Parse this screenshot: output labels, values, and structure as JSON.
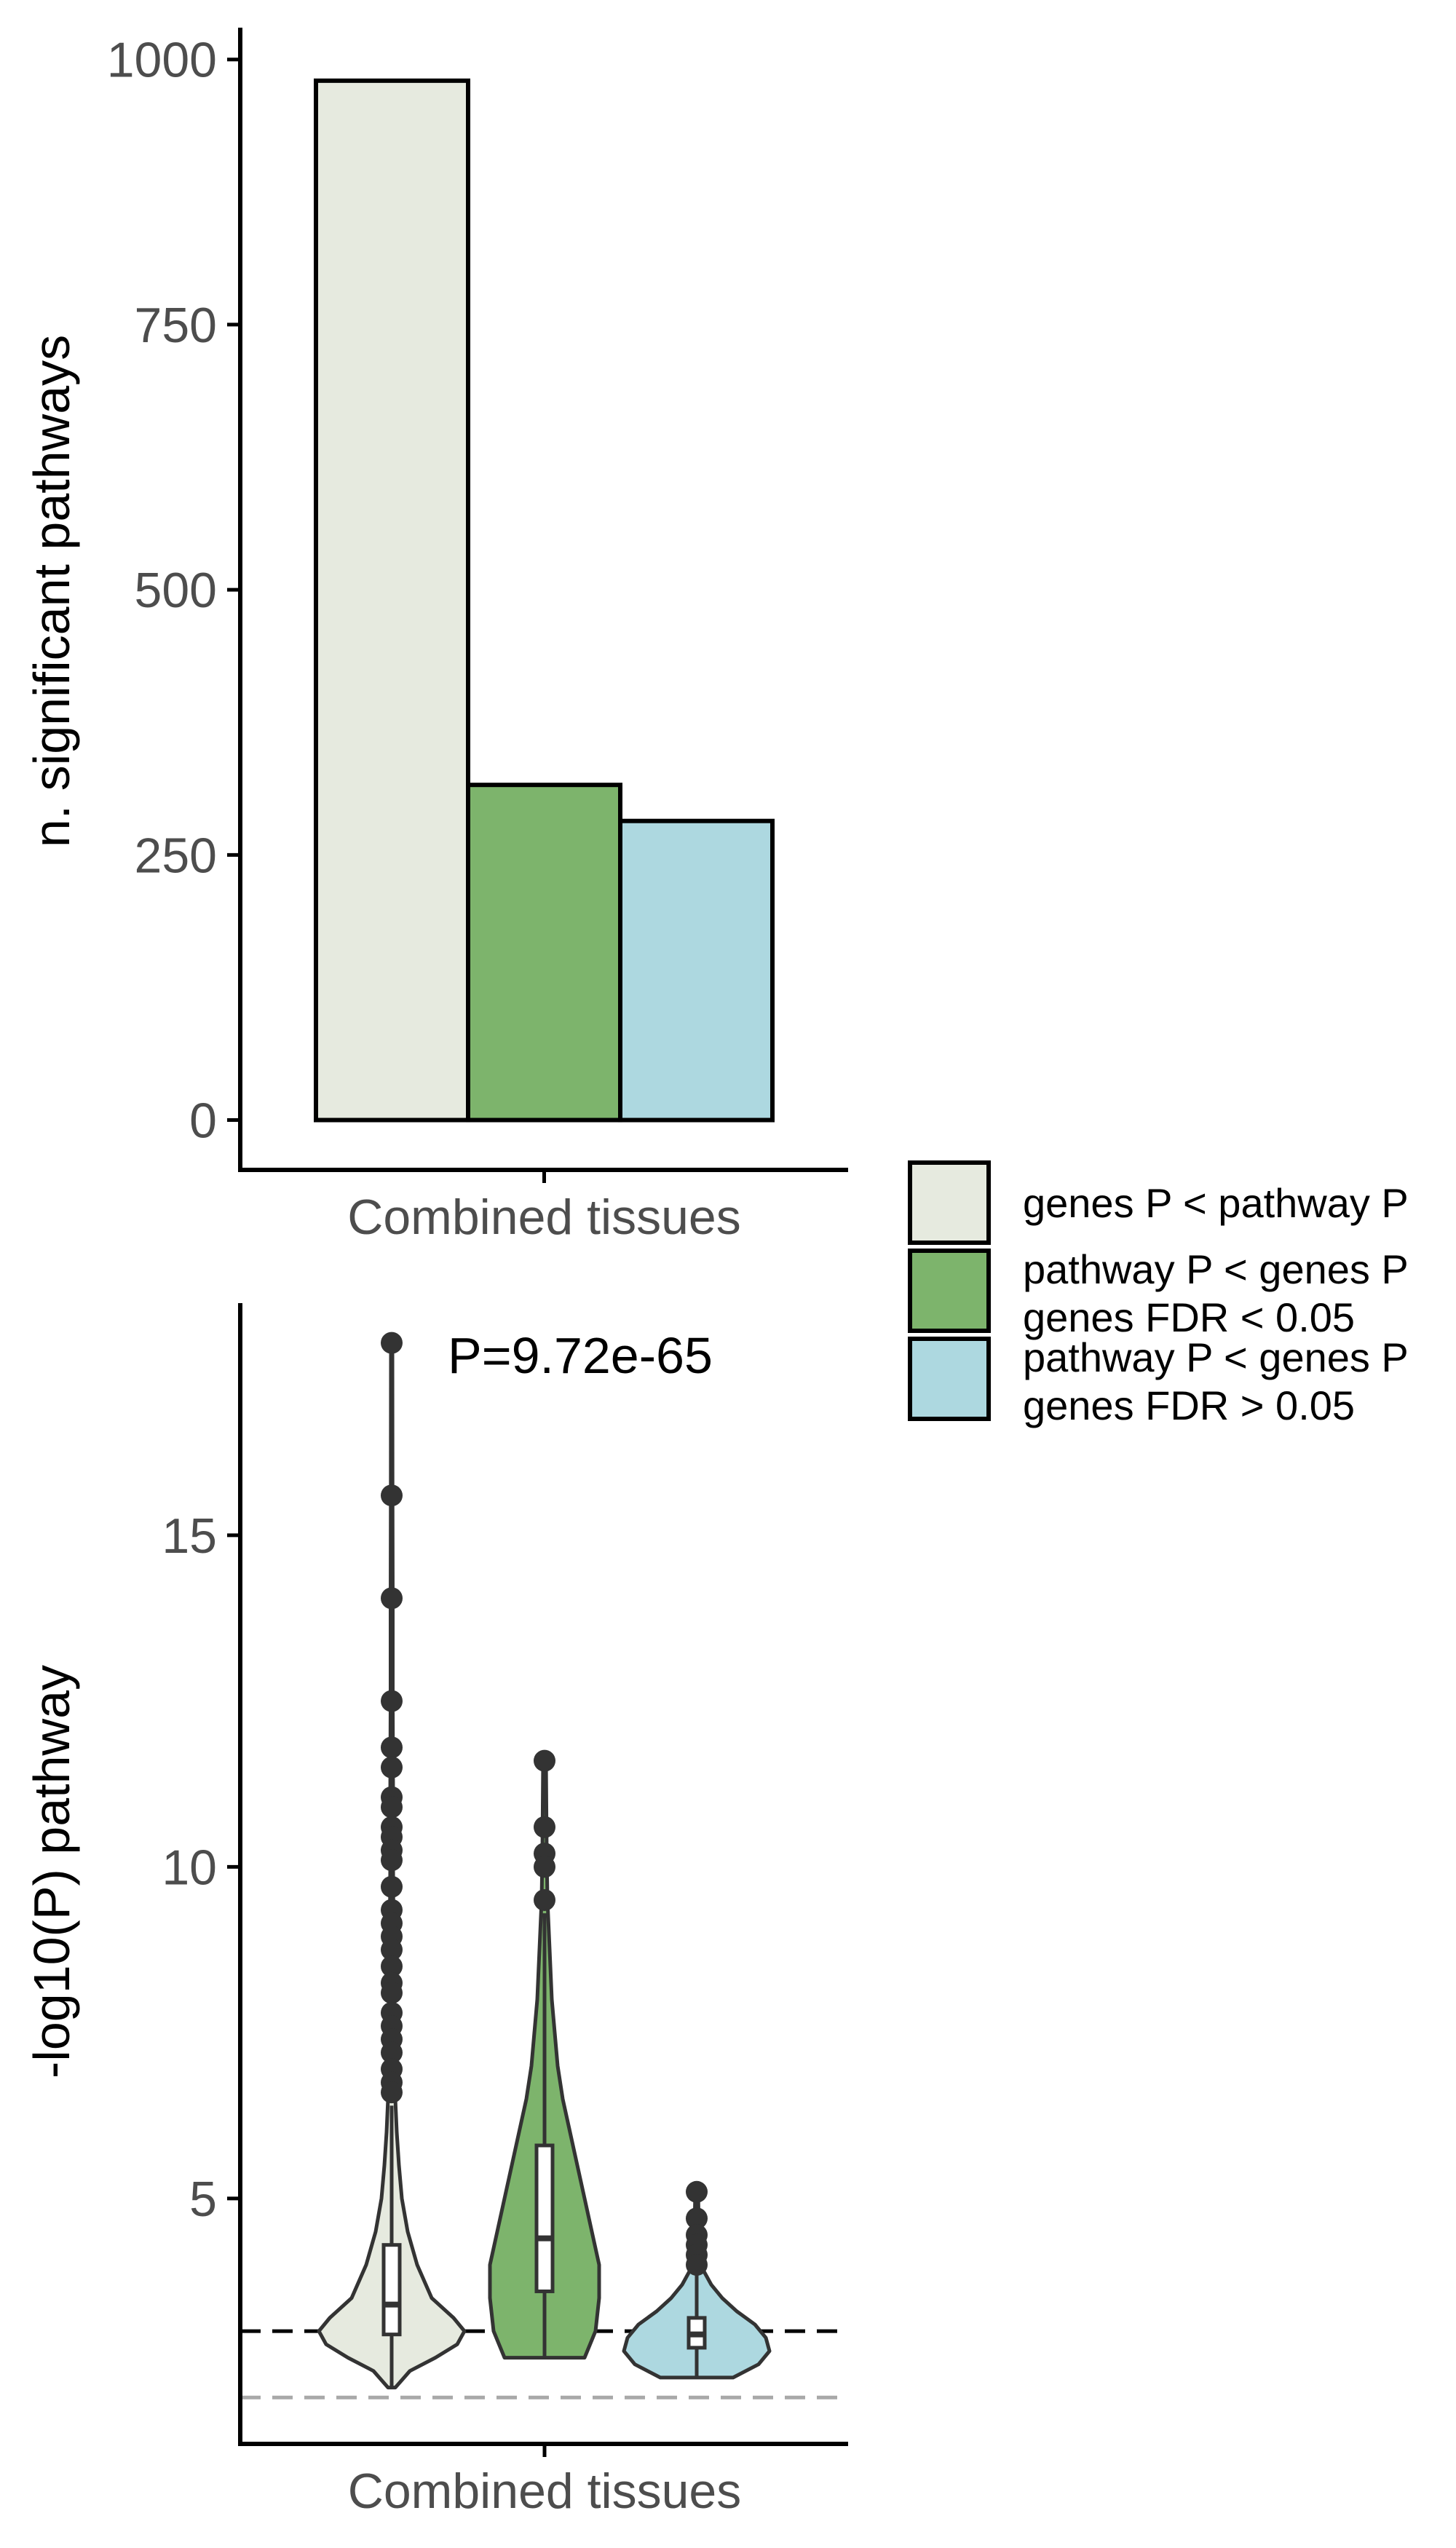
{
  "colors": {
    "genes_lt_pathway": "#E6EADF",
    "pathway_lt_genes_sig": "#7DB46C",
    "pathway_lt_genes_nonsig": "#ADD8E0",
    "outline": "#000000",
    "violin_line": "#333333",
    "threshold_dark": "#000000",
    "threshold_light": "#A9A9A9"
  },
  "legend": {
    "items": [
      {
        "key": "genes_lt_pathway",
        "lines": [
          "genes P < pathway P"
        ]
      },
      {
        "key": "pathway_lt_genes_sig",
        "lines": [
          "pathway P < genes P",
          "genes FDR < 0.05"
        ]
      },
      {
        "key": "pathway_lt_genes_nonsig",
        "lines": [
          "pathway P < genes P",
          "genes FDR > 0.05"
        ]
      }
    ],
    "placement": "right"
  },
  "chart_data": [
    {
      "type": "bar",
      "categories": [
        "Combined tissues"
      ],
      "series": [
        {
          "name": "genes P < pathway P",
          "values": [
            980
          ]
        },
        {
          "name": "pathway P < genes P genes FDR < 0.05",
          "values": [
            316
          ]
        },
        {
          "name": "pathway P < genes P genes FDR > 0.05",
          "values": [
            282
          ]
        }
      ],
      "xlabel": "",
      "ylabel": "n. significant pathways",
      "yticks": [
        0,
        250,
        500,
        750,
        1000
      ],
      "ytick_labels": [
        "0",
        "250",
        "500",
        "750",
        "1000"
      ],
      "ylim": [
        -47,
        1030
      ],
      "grid": false
    },
    {
      "type": "violin",
      "categories": [
        "Combined tissues"
      ],
      "xlabel": "",
      "ylabel": "-log10(P) pathway",
      "yticks": [
        5,
        10,
        15
      ],
      "ytick_labels": [
        "5",
        "10",
        "15"
      ],
      "ylim": [
        1.3,
        18.5
      ],
      "annotation": "P=9.72e-65",
      "hlines": [
        {
          "y": 3.0,
          "style": "dashed",
          "color": "#000000"
        },
        {
          "y": 2.0,
          "style": "dashed",
          "color": "#A9A9A9"
        }
      ],
      "grid": false,
      "series": [
        {
          "name": "genes P < pathway P",
          "min": 2.15,
          "q1": 2.95,
          "median": 3.4,
          "q3": 4.3,
          "whisker_high": 6.4,
          "density": [
            [
              2.15,
              0.05
            ],
            [
              2.4,
              0.25
            ],
            [
              2.6,
              0.6
            ],
            [
              2.8,
              0.9
            ],
            [
              3.0,
              1.0
            ],
            [
              3.2,
              0.85
            ],
            [
              3.5,
              0.55
            ],
            [
              4.0,
              0.35
            ],
            [
              4.5,
              0.22
            ],
            [
              5.0,
              0.14
            ],
            [
              5.5,
              0.1
            ],
            [
              6.0,
              0.07
            ],
            [
              6.5,
              0.05
            ],
            [
              7.0,
              0.04
            ],
            [
              8.0,
              0.03
            ],
            [
              9.0,
              0.025
            ],
            [
              10.0,
              0.02
            ],
            [
              11.0,
              0.02
            ],
            [
              12.5,
              0.015
            ],
            [
              14.0,
              0.015
            ],
            [
              15.6,
              0.012
            ],
            [
              17.9,
              0.01
            ]
          ],
          "outliers": [
            17.9,
            15.6,
            14.05,
            12.5,
            11.8,
            11.5,
            11.05,
            10.9,
            10.6,
            10.45,
            10.25,
            10.1,
            9.7,
            9.35,
            9.15,
            8.95,
            8.75,
            8.5,
            8.25,
            8.1,
            7.8,
            7.6,
            7.4,
            7.2,
            6.95,
            6.75,
            6.6
          ]
        },
        {
          "name": "pathway P < genes P genes FDR < 0.05",
          "min": 2.6,
          "q1": 3.6,
          "median": 4.4,
          "q3": 5.8,
          "whisker_high": 9.3,
          "density": [
            [
              2.6,
              0.55
            ],
            [
              3.0,
              0.7
            ],
            [
              3.5,
              0.75
            ],
            [
              4.0,
              0.75
            ],
            [
              4.5,
              0.65
            ],
            [
              5.0,
              0.55
            ],
            [
              5.5,
              0.45
            ],
            [
              6.0,
              0.35
            ],
            [
              6.5,
              0.25
            ],
            [
              7.0,
              0.18
            ],
            [
              8.0,
              0.1
            ],
            [
              9.0,
              0.06
            ],
            [
              9.5,
              0.04
            ],
            [
              10.2,
              0.03
            ],
            [
              11.6,
              0.02
            ]
          ],
          "outliers": [
            11.6,
            10.6,
            10.2,
            10.0,
            9.5
          ]
        },
        {
          "name": "pathway P < genes P genes FDR > 0.05",
          "min": 2.3,
          "q1": 2.75,
          "median": 2.95,
          "q3": 3.2,
          "whisker_high": 3.85,
          "density": [
            [
              2.3,
              0.5
            ],
            [
              2.5,
              0.85
            ],
            [
              2.7,
              1.0
            ],
            [
              2.9,
              0.95
            ],
            [
              3.1,
              0.8
            ],
            [
              3.3,
              0.55
            ],
            [
              3.5,
              0.35
            ],
            [
              3.7,
              0.2
            ],
            [
              3.9,
              0.1
            ],
            [
              4.2,
              0.05
            ],
            [
              4.5,
              0.03
            ],
            [
              5.1,
              0.02
            ]
          ],
          "outliers": [
            5.1,
            4.7,
            4.45,
            4.3,
            4.15,
            4.0
          ]
        }
      ]
    }
  ]
}
